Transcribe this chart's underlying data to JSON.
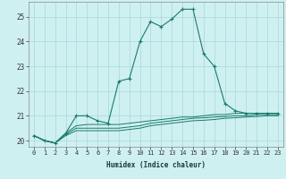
{
  "xlabel": "Humidex (Indice chaleur)",
  "bg_color": "#cff0f0",
  "grid_color": "#a8d8d8",
  "line_color": "#1a7a6e",
  "x_values": [
    0,
    1,
    2,
    3,
    4,
    5,
    6,
    7,
    8,
    9,
    10,
    11,
    12,
    13,
    14,
    15,
    16,
    17,
    18,
    19,
    20,
    21,
    22,
    23
  ],
  "series1": [
    20.2,
    20.0,
    19.9,
    20.3,
    21.0,
    21.0,
    20.8,
    20.7,
    22.4,
    22.5,
    24.0,
    24.8,
    24.6,
    24.9,
    25.3,
    25.3,
    23.5,
    23.0,
    21.5,
    21.2,
    21.1,
    21.1,
    21.1,
    21.1
  ],
  "series2": [
    20.2,
    20.0,
    19.9,
    20.3,
    20.6,
    20.65,
    20.65,
    20.65,
    20.65,
    20.7,
    20.75,
    20.8,
    20.85,
    20.9,
    20.95,
    20.95,
    21.0,
    21.05,
    21.05,
    21.1,
    21.1,
    21.1,
    21.1,
    21.1
  ],
  "series3": [
    20.2,
    20.0,
    19.9,
    20.25,
    20.5,
    20.5,
    20.5,
    20.5,
    20.5,
    20.55,
    20.6,
    20.7,
    20.75,
    20.8,
    20.85,
    20.9,
    20.92,
    20.95,
    20.97,
    21.0,
    21.0,
    21.05,
    21.05,
    21.05
  ],
  "series4": [
    20.2,
    20.0,
    19.9,
    20.2,
    20.4,
    20.4,
    20.4,
    20.4,
    20.4,
    20.45,
    20.5,
    20.6,
    20.65,
    20.7,
    20.75,
    20.8,
    20.82,
    20.85,
    20.9,
    20.92,
    20.95,
    20.97,
    21.0,
    21.0
  ],
  "ylim": [
    19.75,
    25.6
  ],
  "yticks": [
    20,
    21,
    22,
    23,
    24,
    25
  ],
  "xlabel_fontsize": 5.5,
  "tick_fontsize": 5.0,
  "ytick_fontsize": 5.5
}
